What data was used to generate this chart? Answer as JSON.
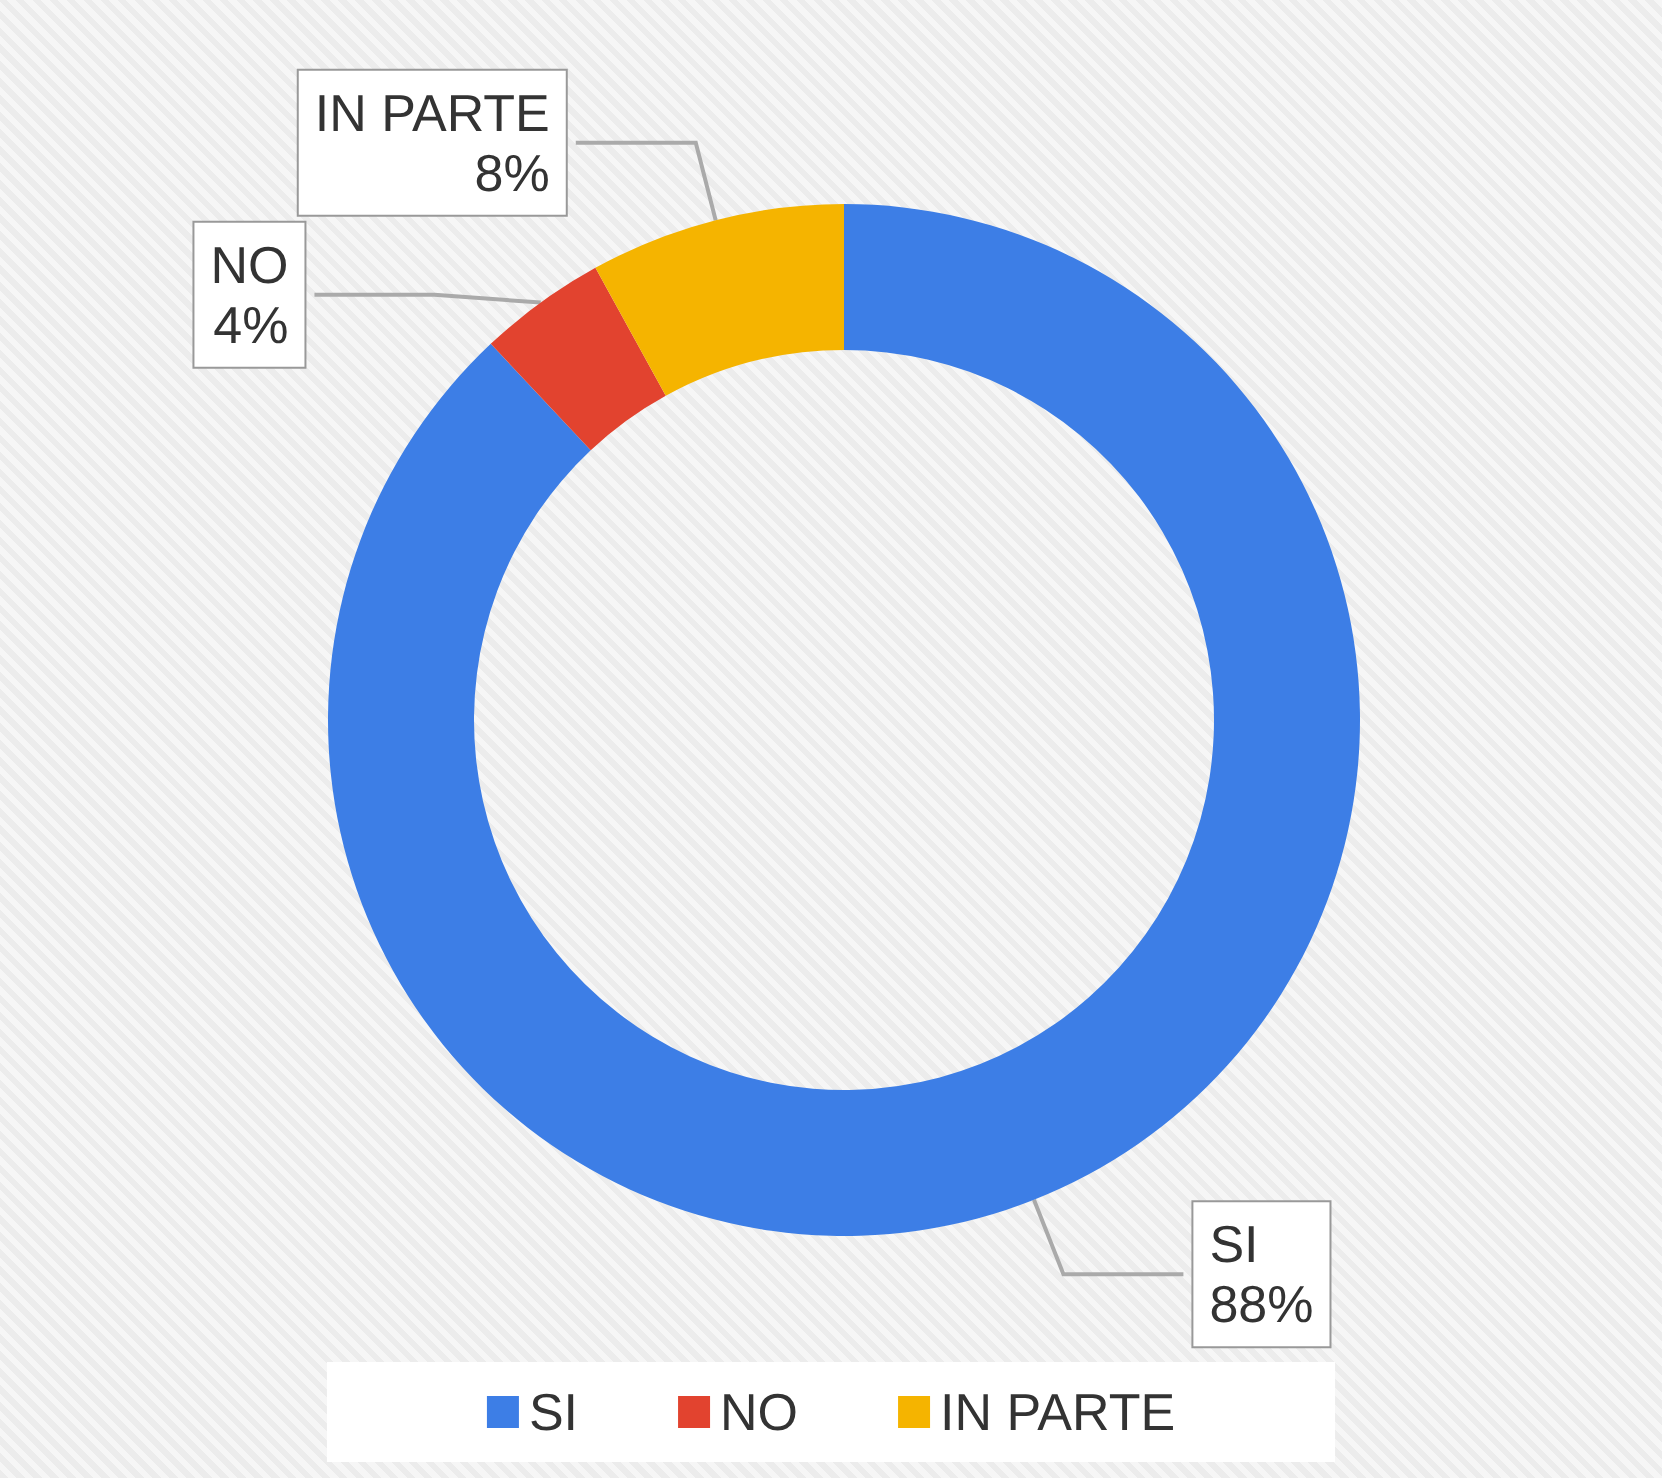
{
  "chart_data": {
    "type": "donut",
    "categories": [
      "SI",
      "NO",
      "IN PARTE"
    ],
    "values": [
      88,
      4,
      8
    ],
    "colors": [
      "#3d7ee6",
      "#e2432f",
      "#f5b400"
    ],
    "value_labels": [
      "88%",
      "4%",
      "8%"
    ],
    "legend": "bottom"
  }
}
